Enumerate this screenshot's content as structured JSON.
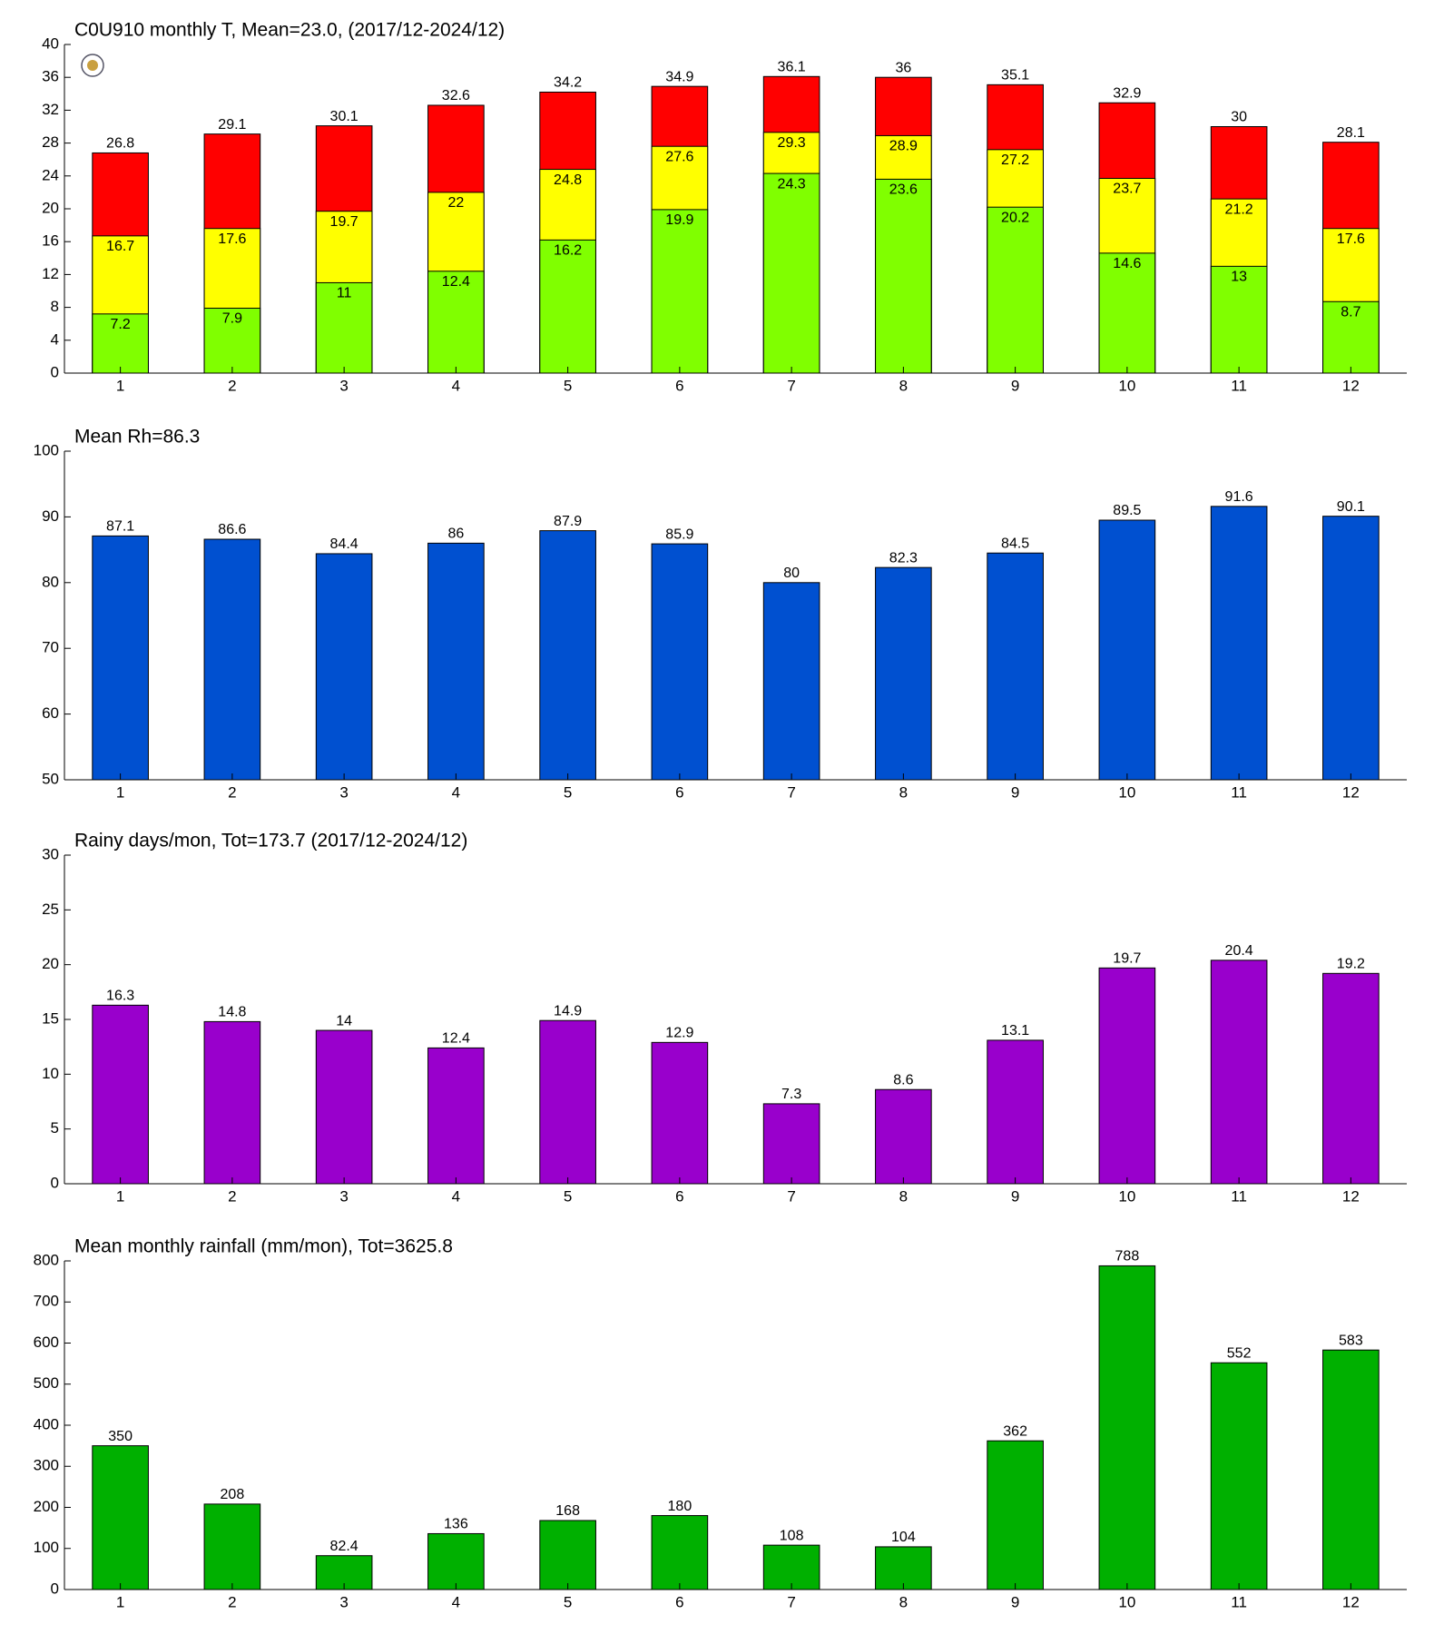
{
  "chart_data": [
    {
      "type": "bar",
      "barmode": "overlay",
      "title": "C0U910 monthly T, Mean=23.0, (2017/12-2024/12)",
      "categories": [
        "1",
        "2",
        "3",
        "4",
        "5",
        "6",
        "7",
        "8",
        "9",
        "10",
        "11",
        "12"
      ],
      "series": [
        {
          "color": "#80ff00",
          "values": [
            7.2,
            7.9,
            11,
            12.4,
            16.2,
            19.9,
            24.3,
            23.6,
            20.2,
            14.6,
            13,
            8.7
          ]
        },
        {
          "color": "#ffff00",
          "values": [
            16.7,
            17.6,
            19.7,
            22,
            24.8,
            27.6,
            29.3,
            28.9,
            27.2,
            23.7,
            21.2,
            17.6
          ]
        },
        {
          "color": "#ff0000",
          "values": [
            26.8,
            29.1,
            30.1,
            32.6,
            34.2,
            34.9,
            36.1,
            36,
            35.1,
            32.9,
            30,
            28.1
          ]
        }
      ],
      "ylim": [
        0,
        40
      ],
      "yticks": [
        0,
        4,
        8,
        12,
        16,
        20,
        24,
        28,
        32,
        36,
        40
      ]
    },
    {
      "type": "bar",
      "title": "Mean Rh=86.3",
      "categories": [
        "1",
        "2",
        "3",
        "4",
        "5",
        "6",
        "7",
        "8",
        "9",
        "10",
        "11",
        "12"
      ],
      "values": [
        87.1,
        86.6,
        84.4,
        86,
        87.9,
        85.9,
        80,
        82.3,
        84.5,
        89.5,
        91.6,
        90.1
      ],
      "color": "#0050d0",
      "ylim": [
        50,
        100
      ],
      "yticks": [
        50,
        60,
        70,
        80,
        90,
        100
      ]
    },
    {
      "type": "bar",
      "title": "Rainy days/mon, Tot=173.7 (2017/12-2024/12)",
      "categories": [
        "1",
        "2",
        "3",
        "4",
        "5",
        "6",
        "7",
        "8",
        "9",
        "10",
        "11",
        "12"
      ],
      "values": [
        16.3,
        14.8,
        14,
        12.4,
        14.9,
        12.9,
        7.3,
        8.6,
        13.1,
        19.7,
        20.4,
        19.2
      ],
      "color": "#9900cc",
      "ylim": [
        0,
        30
      ],
      "yticks": [
        0,
        5,
        10,
        15,
        20,
        25,
        30
      ]
    },
    {
      "type": "bar",
      "title": "Mean monthly rainfall (mm/mon), Tot=3625.8",
      "categories": [
        "1",
        "2",
        "3",
        "4",
        "5",
        "6",
        "7",
        "8",
        "9",
        "10",
        "11",
        "12"
      ],
      "values": [
        350,
        208,
        82.4,
        136,
        168,
        180,
        108,
        104,
        362,
        788,
        552,
        583
      ],
      "color": "#00b000",
      "ylim": [
        0,
        800
      ],
      "yticks": [
        0,
        100,
        200,
        300,
        400,
        500,
        600,
        700,
        800
      ]
    }
  ]
}
